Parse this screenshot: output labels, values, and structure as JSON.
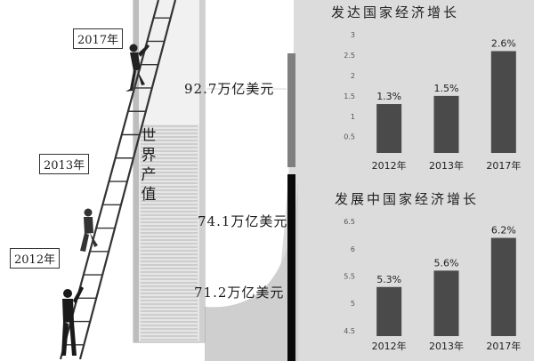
{
  "illustration": {
    "pile_title": "世界产值",
    "ladder_flags": [
      {
        "label": "2017年"
      },
      {
        "label": "2013年"
      },
      {
        "label": "2012年"
      }
    ],
    "value_labels": [
      {
        "text": "92.7万亿美元"
      },
      {
        "text": "74.1万亿美元"
      },
      {
        "text": "71.2万亿美元"
      }
    ],
    "colors": {
      "bar": "#4a4a4a",
      "gray_band": "#7f7f7f",
      "black_band": "#0a0a0a",
      "background_curve": "#d9d9d9"
    }
  },
  "chart_data": [
    {
      "type": "bar",
      "title": "发达国家经济增长",
      "categories": [
        "2012年",
        "2013年",
        "2017年"
      ],
      "values": [
        1.3,
        1.5,
        2.6
      ],
      "value_labels": [
        "1.3%",
        "1.5%",
        "2.6%"
      ],
      "yticks": [
        "0.5",
        "1",
        "1.5",
        "2",
        "2.5",
        "3"
      ],
      "ylim": [
        0.1,
        3.2
      ],
      "grid": false
    },
    {
      "type": "bar",
      "title": "发展中国家经济增长",
      "categories": [
        "2012年",
        "2013年",
        "2017年"
      ],
      "values": [
        5.3,
        5.6,
        6.2
      ],
      "value_labels": [
        "5.3%",
        "5.6%",
        "6.2%"
      ],
      "yticks": [
        "4.5",
        "5",
        "5.5",
        "6",
        "6.5"
      ],
      "ylim": [
        4.4,
        6.6
      ],
      "grid": false
    }
  ]
}
